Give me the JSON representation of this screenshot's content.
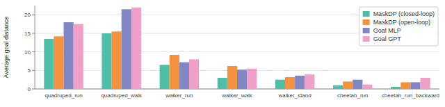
{
  "chart_data": {
    "type": "bar",
    "categories": [
      "quadruped_run",
      "quadruped_walk",
      "walker_run",
      "walker_walk",
      "walker_stand",
      "cheetah_run",
      "cheetah_run_backward"
    ],
    "series": [
      {
        "name": "MaskDP (closed-loop)",
        "color": "#4DBFA8",
        "values": [
          13.5,
          15.0,
          6.5,
          3.0,
          2.5,
          1.0,
          0.6
        ]
      },
      {
        "name": "MaskDP (open-loop)",
        "color": "#F5923E",
        "values": [
          14.2,
          15.5,
          9.2,
          6.2,
          3.2,
          2.0,
          1.8
        ]
      },
      {
        "name": "Goal MLP",
        "color": "#8087C4",
        "values": [
          18.0,
          21.5,
          7.2,
          5.2,
          3.6,
          2.5,
          1.8
        ]
      },
      {
        "name": "Goal GPT",
        "color": "#F0A0C8",
        "values": [
          17.5,
          22.0,
          8.0,
          5.5,
          3.9,
          1.2,
          3.0
        ]
      }
    ],
    "ylabel": "Average goal distance",
    "ylim": [
      0,
      22.5
    ],
    "yticks": [
      0,
      5,
      10,
      15,
      20
    ],
    "grid": true,
    "legend": "upper right"
  }
}
